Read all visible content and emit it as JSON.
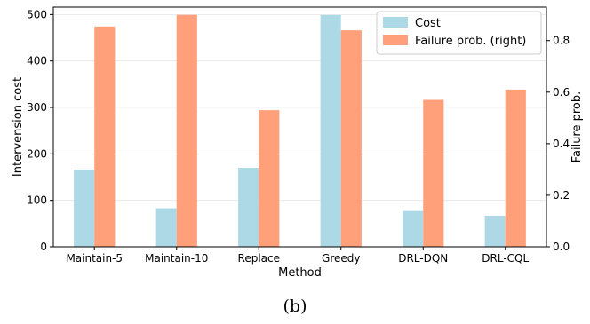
{
  "chart_data": {
    "type": "bar",
    "xlabel": "Method",
    "ylabel": "Intervension cost",
    "y2label": "Failure prob.",
    "categories": [
      "Maintain-5",
      "Maintain-10",
      "Replace",
      "Greedy",
      "DRL-DQN",
      "DRL-CQL"
    ],
    "ylim": [
      0,
      516
    ],
    "y2lim": [
      0,
      0.93
    ],
    "yticks": [
      "0",
      "100",
      "200",
      "300",
      "400",
      "500"
    ],
    "y2ticks": [
      "0.0",
      "0.2",
      "0.4",
      "0.6",
      "0.8"
    ],
    "grid": true,
    "legend": "top-right",
    "series": [
      {
        "name": "Cost",
        "axis": "left",
        "color": "#add8e6",
        "values": [
          166,
          83,
          170,
          499,
          77,
          67
        ]
      },
      {
        "name": "Failure prob. (right)",
        "axis": "right",
        "color": "#ffa07a",
        "values": [
          0.855,
          0.9,
          0.53,
          0.84,
          0.57,
          0.61
        ]
      }
    ]
  },
  "caption": "(b)"
}
